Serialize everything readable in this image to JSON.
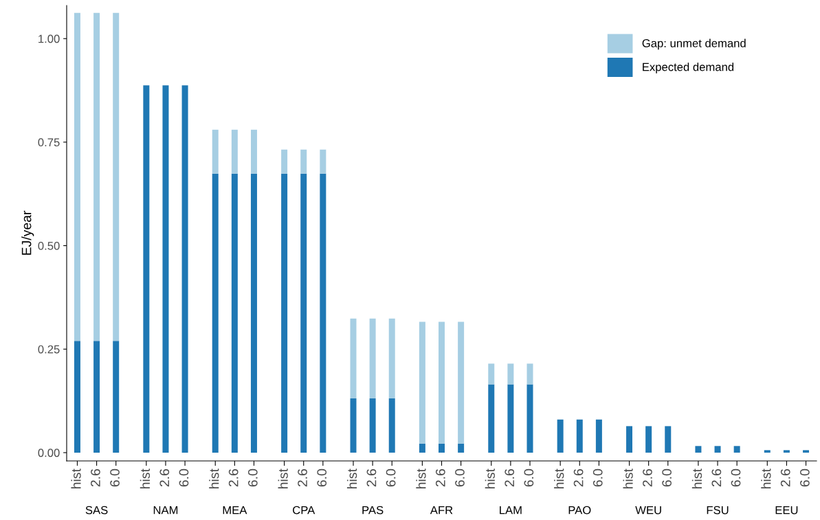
{
  "chart_data": {
    "type": "bar",
    "stacked": true,
    "ylabel": "EJ/year",
    "categories": [
      "hist",
      "2.6",
      "6.0",
      "hist",
      "2.6",
      "6.0",
      "hist",
      "2.6",
      "6.0",
      "hist",
      "2.6",
      "6.0",
      "hist",
      "2.6",
      "6.0",
      "hist",
      "2.6",
      "6.0",
      "hist",
      "2.6",
      "6.0",
      "hist",
      "2.6",
      "6.0",
      "hist",
      "2.6",
      "6.0",
      "hist",
      "2.6",
      "6.0",
      "hist",
      "2.6",
      "6.0"
    ],
    "ylim": [
      -0.02,
      1.08
    ],
    "yticks": [
      {
        "value": 0,
        "label": "0.00"
      },
      {
        "value": 0.25,
        "label": "0.25"
      },
      {
        "value": 0.5,
        "label": "0.50"
      },
      {
        "value": 0.75,
        "label": "0.75"
      },
      {
        "value": 1,
        "label": "1.00"
      }
    ],
    "legend": "top right",
    "annotations": [
      "SAS",
      "NAM",
      "MEA",
      "CPA",
      "PAS",
      "AFR",
      "LAM",
      "PAO",
      "WEU",
      "FSU",
      "EEU"
    ],
    "series": [
      {
        "name": "Expected demand",
        "color": "#1f78b4",
        "values": [
          0.27,
          0.27,
          0.27,
          0.887,
          0.887,
          0.887,
          0.674,
          0.674,
          0.674,
          0.674,
          0.674,
          0.674,
          0.131,
          0.131,
          0.131,
          0.022,
          0.022,
          0.022,
          0.165,
          0.165,
          0.165,
          0.08,
          0.08,
          0.08,
          0.064,
          0.064,
          0.064,
          0.016,
          0.016,
          0.016,
          0.006,
          0.006,
          0.006
        ]
      },
      {
        "name": "Gap: unmet demand",
        "color": "#a6cee3",
        "values": [
          0.792,
          0.792,
          0.792,
          0,
          0,
          0,
          0.106,
          0.106,
          0.106,
          0.058,
          0.058,
          0.058,
          0.193,
          0.193,
          0.193,
          0.294,
          0.294,
          0.294,
          0.05,
          0.05,
          0.05,
          0,
          0,
          0,
          0,
          0,
          0,
          0,
          0,
          0,
          0,
          0,
          0
        ]
      }
    ]
  }
}
